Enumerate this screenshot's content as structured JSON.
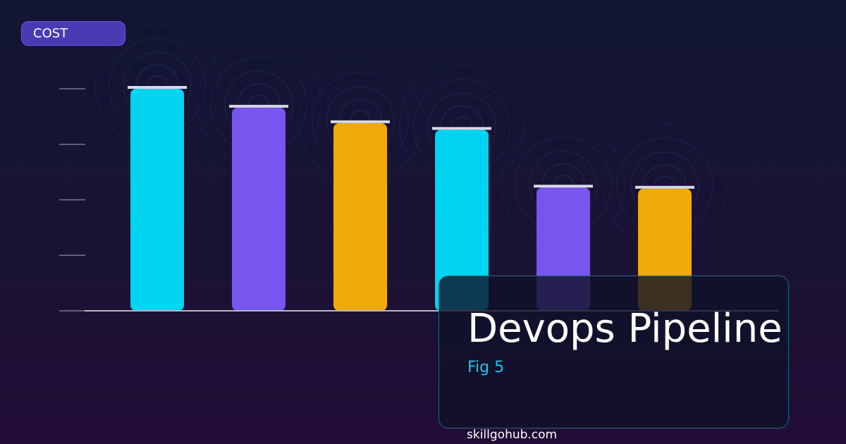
{
  "badge": {
    "label": "COST"
  },
  "panel": {
    "title": "Devops Pipeline",
    "subtitle": "Fig 5"
  },
  "footer": {
    "text": "skillgohub.com"
  },
  "chart_data": {
    "type": "bar",
    "title": "",
    "xlabel": "",
    "ylabel": "",
    "ylim": [
      0,
      100
    ],
    "grid": false,
    "values": [
      100,
      91.5,
      84.5,
      81.5,
      55.5,
      55
    ],
    "colors": [
      "#00d4f0",
      "#7755ee",
      "#eeaa06",
      "#00d4f0",
      "#7755ee",
      "#eeaa06"
    ],
    "cap_color": "#d8d8e8",
    "axis_color": "#b8b8c8",
    "ring_color": "#2b3d66"
  }
}
